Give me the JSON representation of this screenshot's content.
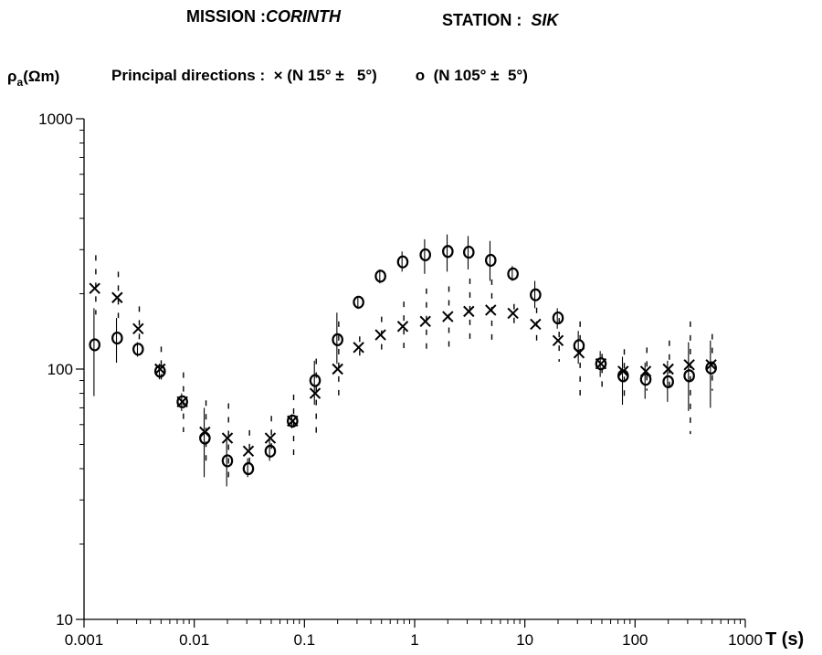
{
  "header": {
    "mission_label": "MISSION :",
    "mission_value": "CORINTH",
    "station_label": "STATION :",
    "station_value": "SIK"
  },
  "legend": {
    "prefix": "Principal directions :",
    "series1_symbol": "×",
    "series1_text": "(N 15° ±   5°)",
    "series2_symbol": "o",
    "series2_text": "(N 105° ±  5°)"
  },
  "chart_data": {
    "type": "scatter",
    "ylabel": "ρa (Ωm)",
    "ylabel_main": "ρ",
    "ylabel_sub": "a",
    "ylabel_unit": "(Ωm)",
    "xlabel": "T (s)",
    "xscale": "log",
    "yscale": "log",
    "xlim": [
      0.001,
      1000
    ],
    "ylim": [
      10,
      1000
    ],
    "xticks": [
      0.001,
      0.01,
      0.1,
      1,
      10,
      100,
      1000
    ],
    "xtick_labels": [
      "0.001",
      "0.01",
      "0.1",
      "1",
      "10",
      "100",
      "1000"
    ],
    "yticks": [
      10,
      100,
      1000
    ],
    "ytick_labels": [
      "10",
      "100",
      "1000"
    ],
    "grid": false,
    "series": [
      {
        "marker": "x",
        "points": [
          {
            "x": 0.00125,
            "y": 210,
            "lo": 165,
            "hi": 285
          },
          {
            "x": 0.002,
            "y": 193,
            "lo": 160,
            "hi": 245
          },
          {
            "x": 0.0031,
            "y": 145,
            "lo": 128,
            "hi": 178
          },
          {
            "x": 0.0049,
            "y": 100,
            "lo": 88,
            "hi": 123
          },
          {
            "x": 0.0078,
            "y": 74,
            "lo": 56,
            "hi": 97
          },
          {
            "x": 0.0125,
            "y": 56,
            "lo": 40,
            "hi": 75
          },
          {
            "x": 0.02,
            "y": 53,
            "lo": 37,
            "hi": 73
          },
          {
            "x": 0.031,
            "y": 47,
            "lo": 40,
            "hi": 57
          },
          {
            "x": 0.049,
            "y": 53,
            "lo": 46,
            "hi": 65
          },
          {
            "x": 0.078,
            "y": 62,
            "lo": 45,
            "hi": 79
          },
          {
            "x": 0.125,
            "y": 80,
            "lo": 52,
            "hi": 110
          },
          {
            "x": 0.2,
            "y": 100,
            "lo": 74,
            "hi": 155
          },
          {
            "x": 0.31,
            "y": 122,
            "lo": 110,
            "hi": 135
          },
          {
            "x": 0.49,
            "y": 137,
            "lo": 117,
            "hi": 162
          },
          {
            "x": 0.78,
            "y": 148,
            "lo": 116,
            "hi": 186
          },
          {
            "x": 1.25,
            "y": 155,
            "lo": 113,
            "hi": 210
          },
          {
            "x": 2.0,
            "y": 162,
            "lo": 118,
            "hi": 214
          },
          {
            "x": 3.1,
            "y": 170,
            "lo": 123,
            "hi": 230
          },
          {
            "x": 4.9,
            "y": 172,
            "lo": 125,
            "hi": 228
          },
          {
            "x": 7.8,
            "y": 167,
            "lo": 150,
            "hi": 182
          },
          {
            "x": 12.5,
            "y": 151,
            "lo": 128,
            "hi": 176
          },
          {
            "x": 20,
            "y": 130,
            "lo": 107,
            "hi": 160
          },
          {
            "x": 31,
            "y": 116,
            "lo": 74,
            "hi": 155
          },
          {
            "x": 49,
            "y": 105,
            "lo": 85,
            "hi": 115
          },
          {
            "x": 78,
            "y": 98,
            "lo": 78,
            "hi": 120
          },
          {
            "x": 125,
            "y": 98,
            "lo": 82,
            "hi": 122
          },
          {
            "x": 200,
            "y": 100,
            "lo": 82,
            "hi": 130
          },
          {
            "x": 310,
            "y": 104,
            "lo": 55,
            "hi": 155
          },
          {
            "x": 490,
            "y": 104,
            "lo": 82,
            "hi": 138
          }
        ]
      },
      {
        "marker": "o",
        "points": [
          {
            "x": 0.00125,
            "y": 125,
            "lo": 78,
            "hi": 175
          },
          {
            "x": 0.002,
            "y": 133,
            "lo": 106,
            "hi": 160
          },
          {
            "x": 0.0031,
            "y": 120,
            "lo": 112,
            "hi": 128
          },
          {
            "x": 0.0049,
            "y": 98,
            "lo": 91,
            "hi": 105
          },
          {
            "x": 0.0078,
            "y": 74,
            "lo": 68,
            "hi": 80
          },
          {
            "x": 0.0125,
            "y": 53,
            "lo": 37,
            "hi": 70
          },
          {
            "x": 0.02,
            "y": 43,
            "lo": 34,
            "hi": 52
          },
          {
            "x": 0.031,
            "y": 40,
            "lo": 37,
            "hi": 44
          },
          {
            "x": 0.049,
            "y": 47,
            "lo": 43,
            "hi": 52
          },
          {
            "x": 0.078,
            "y": 62,
            "lo": 58,
            "hi": 66
          },
          {
            "x": 0.125,
            "y": 90,
            "lo": 72,
            "hi": 108
          },
          {
            "x": 0.2,
            "y": 131,
            "lo": 105,
            "hi": 168
          },
          {
            "x": 0.31,
            "y": 185,
            "lo": 174,
            "hi": 196
          },
          {
            "x": 0.49,
            "y": 235,
            "lo": 220,
            "hi": 250
          },
          {
            "x": 0.78,
            "y": 268,
            "lo": 245,
            "hi": 295
          },
          {
            "x": 1.25,
            "y": 286,
            "lo": 240,
            "hi": 330
          },
          {
            "x": 2.0,
            "y": 295,
            "lo": 245,
            "hi": 345
          },
          {
            "x": 3.1,
            "y": 293,
            "lo": 250,
            "hi": 340
          },
          {
            "x": 4.9,
            "y": 272,
            "lo": 225,
            "hi": 325
          },
          {
            "x": 7.8,
            "y": 240,
            "lo": 225,
            "hi": 258
          },
          {
            "x": 12.5,
            "y": 198,
            "lo": 175,
            "hi": 225
          },
          {
            "x": 20,
            "y": 160,
            "lo": 145,
            "hi": 175
          },
          {
            "x": 31,
            "y": 124,
            "lo": 105,
            "hi": 142
          },
          {
            "x": 49,
            "y": 105,
            "lo": 93,
            "hi": 118
          },
          {
            "x": 78,
            "y": 94,
            "lo": 72,
            "hi": 112
          },
          {
            "x": 125,
            "y": 91,
            "lo": 76,
            "hi": 106
          },
          {
            "x": 200,
            "y": 89,
            "lo": 74,
            "hi": 108
          },
          {
            "x": 310,
            "y": 94,
            "lo": 68,
            "hi": 128
          },
          {
            "x": 490,
            "y": 101,
            "lo": 70,
            "hi": 130
          }
        ]
      }
    ]
  }
}
